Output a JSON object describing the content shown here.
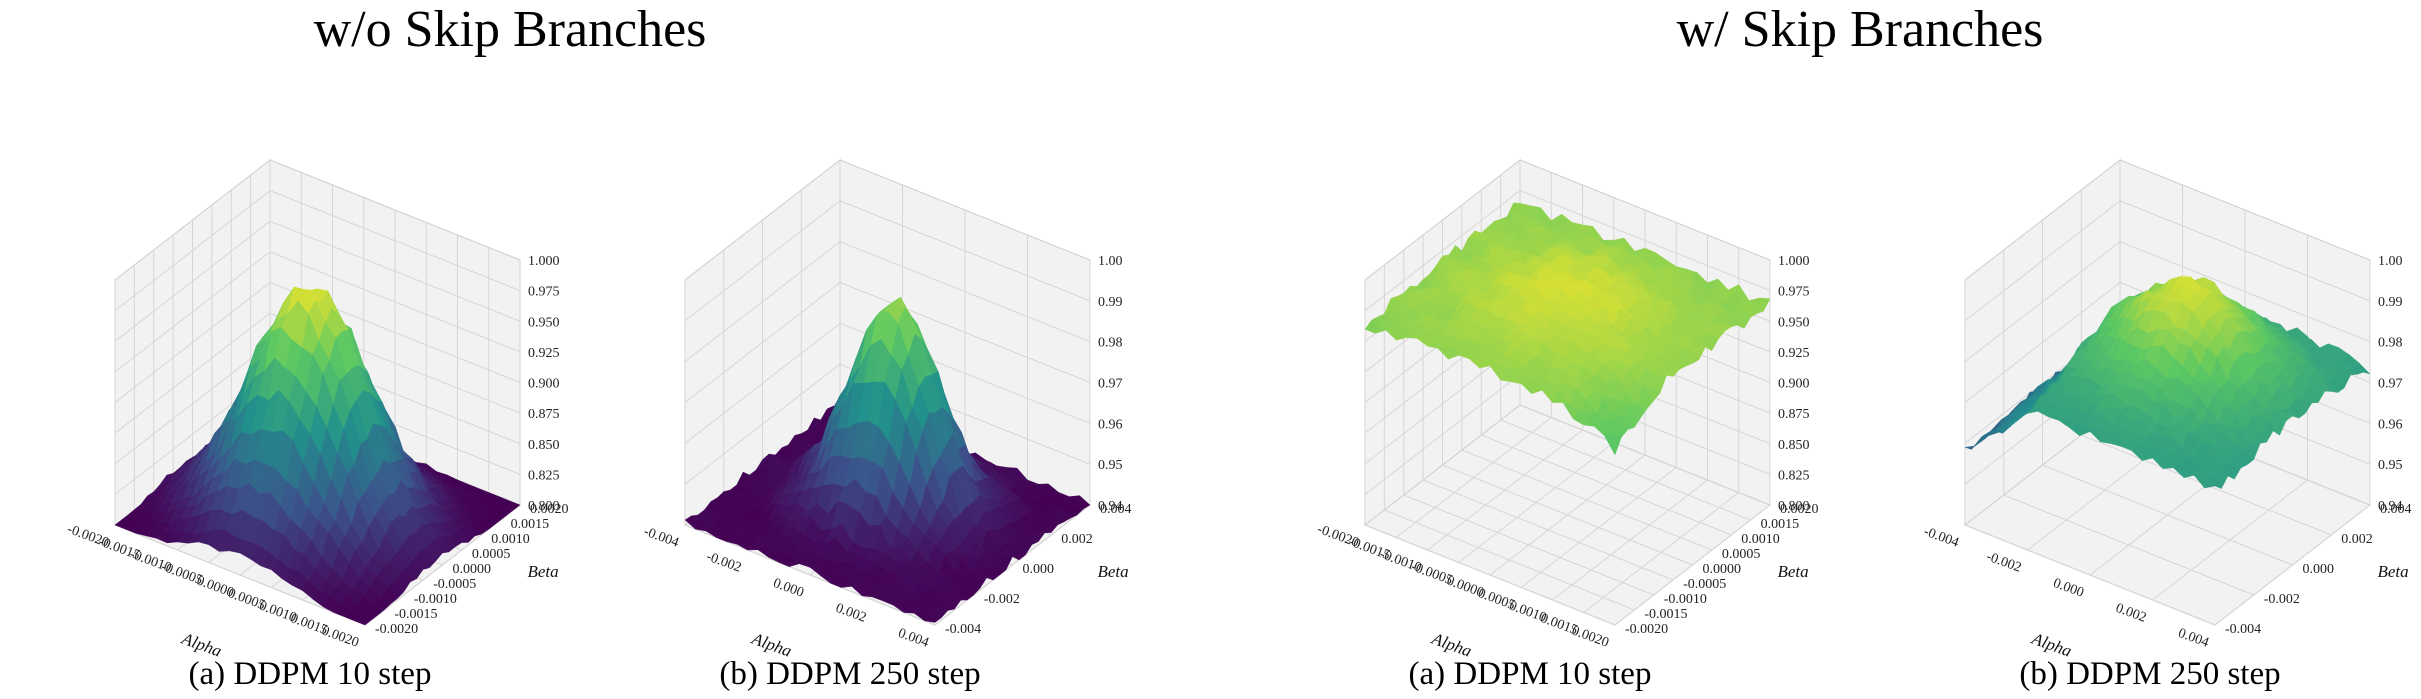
{
  "titles": {
    "left": "w/o Skip Branches",
    "right": "w/ Skip Branches"
  },
  "captions": [
    "(a) DDPM 10 step",
    "(b) DDPM 250 step",
    "(a) DDPM 10 step",
    "(b) DDPM 250 step"
  ],
  "colormap": [
    "#440154",
    "#3b528b",
    "#21918c",
    "#5ec962",
    "#fde725"
  ],
  "chart_data": [
    {
      "type": "surface",
      "group": "w/o Skip Branches",
      "caption": "(a) DDPM 10 step",
      "xlabel": "Alpha",
      "ylabel": "Beta",
      "zlabel": "",
      "xlim": [
        -0.002,
        0.002
      ],
      "ylim": [
        -0.002,
        0.002
      ],
      "zlim": [
        0.8,
        1.0
      ],
      "x_ticks": [
        "-0.0020",
        "-0.0015",
        "-0.0010",
        "-0.0005",
        "0.0000",
        "0.0005",
        "0.0010",
        "0.0015",
        "0.0020"
      ],
      "y_ticks": [
        "-0.0020",
        "-0.0015",
        "-0.0010",
        "-0.0005",
        "0.0000",
        "0.0005",
        "0.0010",
        "0.0015",
        "0.0020"
      ],
      "z_ticks": [
        "0.800",
        "0.825",
        "0.850",
        "0.875",
        "0.900",
        "0.925",
        "0.950",
        "0.975",
        "1.000"
      ],
      "grid": true,
      "surface_summary": {
        "peak": 1.0,
        "peak_location": [
          0.0,
          0.0
        ],
        "min": 0.8,
        "shape": "sharp peak at center, falling toward edges"
      }
    },
    {
      "type": "surface",
      "group": "w/o Skip Branches",
      "caption": "(b) DDPM 250 step",
      "xlabel": "Alpha",
      "ylabel": "Beta",
      "zlabel": "",
      "xlim": [
        -0.005,
        0.005
      ],
      "ylim": [
        -0.005,
        0.005
      ],
      "zlim": [
        0.94,
        1.0
      ],
      "x_ticks": [
        "-0.004",
        "-0.002",
        "0.000",
        "0.002",
        "0.004"
      ],
      "y_ticks": [
        "-0.004",
        "-0.002",
        "0.000",
        "0.002",
        "0.004"
      ],
      "z_ticks": [
        "0.94",
        "0.95",
        "0.96",
        "0.97",
        "0.98",
        "0.99",
        "1.00"
      ],
      "grid": true,
      "surface_summary": {
        "peak": 0.99,
        "peak_location": [
          0.0,
          0.0
        ],
        "min": 0.94,
        "shape": "narrow peak, steep fall-off"
      }
    },
    {
      "type": "surface",
      "group": "w/ Skip Branches",
      "caption": "(a) DDPM 10 step",
      "xlabel": "Alpha",
      "ylabel": "Beta",
      "zlabel": "",
      "xlim": [
        -0.002,
        0.002
      ],
      "ylim": [
        -0.002,
        0.002
      ],
      "zlim": [
        0.8,
        1.0
      ],
      "x_ticks": [
        "-0.0020",
        "-0.0015",
        "-0.0010",
        "-0.0005",
        "0.0000",
        "0.0005",
        "0.0010",
        "0.0015",
        "0.0020"
      ],
      "y_ticks": [
        "-0.0020",
        "-0.0015",
        "-0.0010",
        "-0.0005",
        "0.0000",
        "0.0005",
        "0.0010",
        "0.0015",
        "0.0020"
      ],
      "z_ticks": [
        "0.800",
        "0.825",
        "0.850",
        "0.875",
        "0.900",
        "0.925",
        "0.950",
        "0.975",
        "1.000"
      ],
      "grid": true,
      "surface_summary": {
        "peak": 0.99,
        "peak_location": [
          0.0,
          0.0
        ],
        "min": 0.93,
        "shape": "flat plateau near 0.96-0.99"
      }
    },
    {
      "type": "surface",
      "group": "w/ Skip Branches",
      "caption": "(b) DDPM 250 step",
      "xlabel": "Alpha",
      "ylabel": "Beta",
      "zlabel": "",
      "xlim": [
        -0.005,
        0.005
      ],
      "ylim": [
        -0.005,
        0.005
      ],
      "zlim": [
        0.94,
        1.0
      ],
      "x_ticks": [
        "-0.004",
        "-0.002",
        "0.000",
        "0.002",
        "0.004"
      ],
      "y_ticks": [
        "-0.004",
        "-0.002",
        "0.000",
        "0.002",
        "0.004"
      ],
      "z_ticks": [
        "0.94",
        "0.95",
        "0.96",
        "0.97",
        "0.98",
        "0.99",
        "1.00"
      ],
      "grid": true,
      "surface_summary": {
        "peak": 0.99,
        "peak_location": [
          0.0,
          0.0
        ],
        "min": 0.95,
        "shape": "broad, gently sloped surface"
      }
    }
  ]
}
